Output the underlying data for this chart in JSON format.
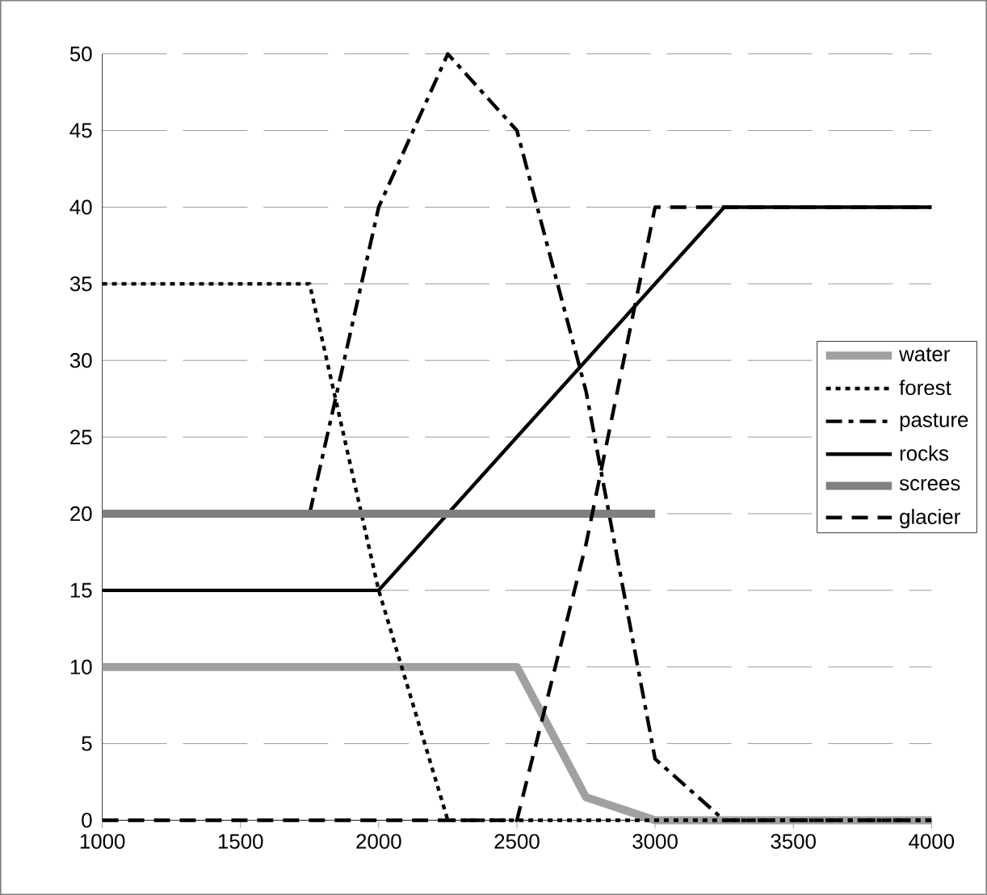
{
  "chart_data": {
    "type": "line",
    "x": [
      1000,
      1250,
      1500,
      1750,
      2000,
      2250,
      2500,
      2750,
      3000,
      3250,
      3500,
      3750,
      4000
    ],
    "xlim": [
      1000,
      4000
    ],
    "xticks": [
      1000,
      1500,
      2000,
      2500,
      3000,
      3500,
      4000
    ],
    "ylim": [
      0,
      50
    ],
    "yticks": [
      0,
      5,
      10,
      15,
      20,
      25,
      30,
      35,
      40,
      45,
      50
    ],
    "grid": "y",
    "legend": "right",
    "marker": "none",
    "series": [
      {
        "name": "water",
        "color": "#a0a0a0",
        "line_style": "solid",
        "values": [
          10,
          10,
          10,
          10,
          10,
          10,
          10,
          1.5,
          0,
          0,
          0,
          0,
          0
        ]
      },
      {
        "name": "forest",
        "color": "#000000",
        "line_style": "dotted",
        "values": [
          35,
          35,
          35,
          35,
          15,
          0,
          0,
          0,
          0,
          0,
          0,
          0,
          0
        ]
      },
      {
        "name": "pasture",
        "color": "#000000",
        "line_style": "dashdotted",
        "values": [
          null,
          null,
          null,
          20,
          40,
          50,
          45,
          28,
          4,
          0,
          0,
          0,
          0
        ]
      },
      {
        "name": "rocks",
        "color": "#000000",
        "line_style": "solid",
        "values": [
          15,
          15,
          15,
          15,
          15,
          20,
          25,
          30,
          35,
          40,
          40,
          40,
          40
        ]
      },
      {
        "name": "screes",
        "color": "#808080",
        "line_style": "solid",
        "values": [
          20,
          20,
          20,
          20,
          20,
          20,
          20,
          20,
          20,
          null,
          null,
          null,
          null
        ]
      },
      {
        "name": "glacier",
        "color": "#000000",
        "line_style": "dashed",
        "values": [
          0,
          0,
          0,
          0,
          0,
          0,
          0,
          18,
          40,
          40,
          40,
          40,
          40
        ]
      }
    ]
  }
}
